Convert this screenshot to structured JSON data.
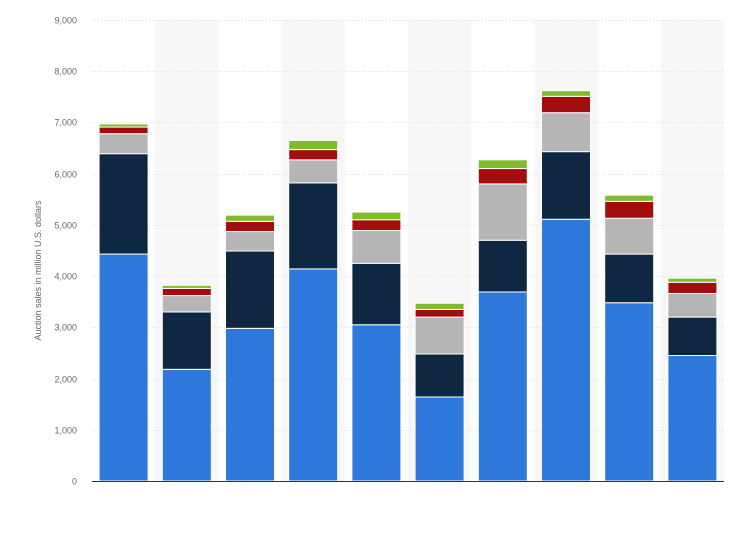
{
  "chart_data": {
    "type": "bar",
    "stacked": true,
    "title": "",
    "xlabel": "",
    "ylabel": "Auction sales in million U.S. dollars",
    "ylim": [
      0,
      9000
    ],
    "y_ticks": [
      0,
      1000,
      2000,
      3000,
      4000,
      5000,
      6000,
      7000,
      8000,
      9000
    ],
    "y_tick_labels": [
      "0",
      "1,000",
      "2,000",
      "3,000",
      "4,000",
      "5,000",
      "6,000",
      "7,000",
      "8,000",
      "9,000"
    ],
    "grid": true,
    "legend": "none",
    "categories": [
      "",
      "",
      "",
      "",
      "",
      "",
      "",
      "",
      "",
      ""
    ],
    "series": [
      {
        "color": "#2e78dc",
        "values": [
          4430,
          2180,
          2980,
          4140,
          3050,
          1640,
          3690,
          5110,
          3480,
          2450
        ]
      },
      {
        "color": "#0f2740",
        "values": [
          1960,
          1120,
          1510,
          1680,
          1200,
          840,
          1010,
          1320,
          950,
          750
        ]
      },
      {
        "color": "#b5b5b5",
        "values": [
          390,
          320,
          380,
          450,
          640,
          720,
          1100,
          760,
          700,
          460
        ]
      },
      {
        "color": "#a30d0d",
        "values": [
          130,
          140,
          200,
          200,
          210,
          150,
          300,
          320,
          330,
          220
        ]
      },
      {
        "color": "#7fbb2a",
        "values": [
          60,
          60,
          120,
          180,
          150,
          120,
          170,
          110,
          120,
          80
        ]
      }
    ]
  }
}
